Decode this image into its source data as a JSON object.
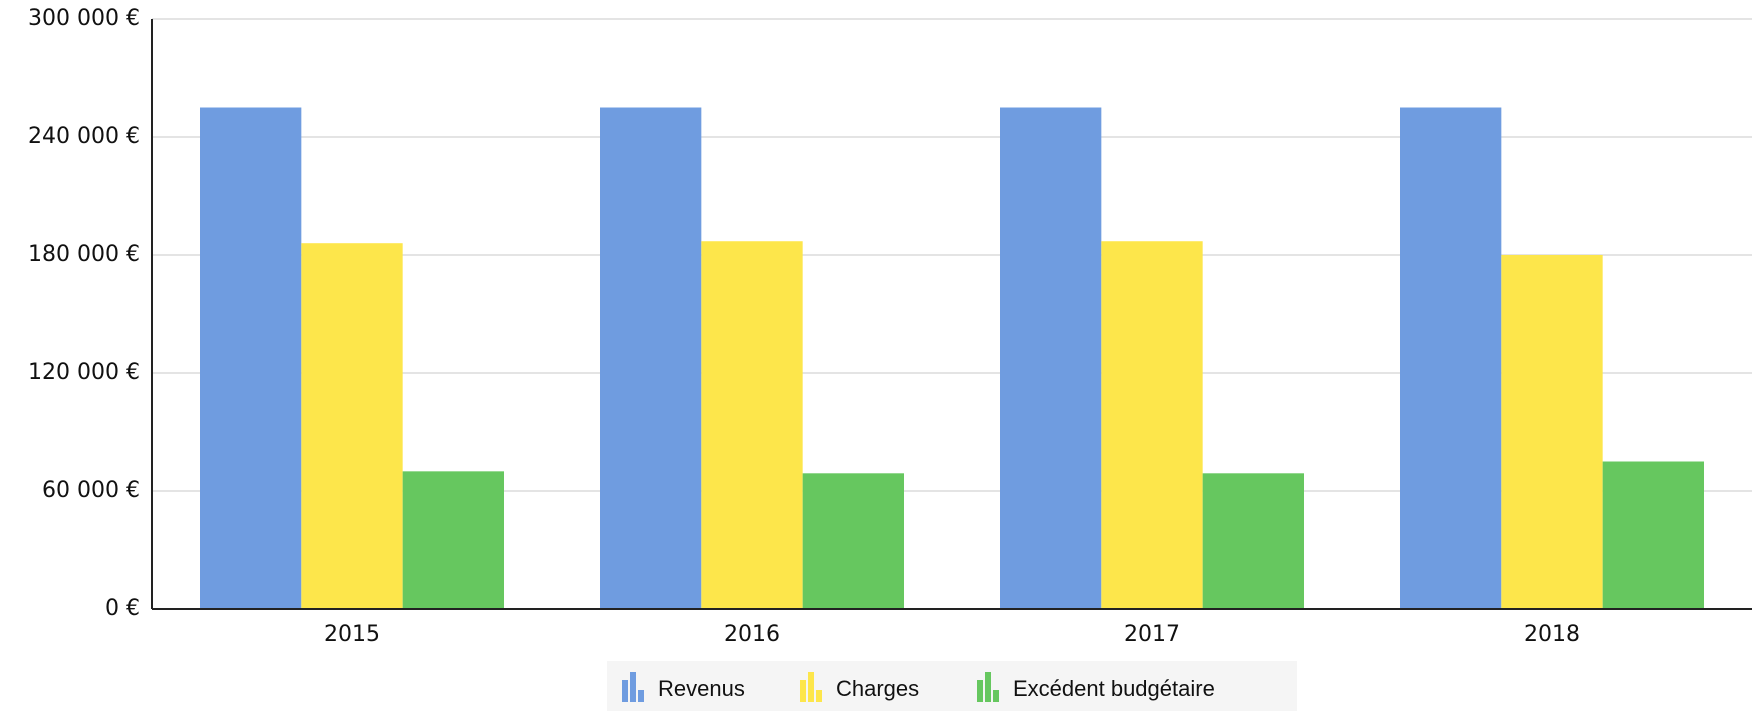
{
  "chart_data": {
    "type": "bar",
    "categories": [
      "2015",
      "2016",
      "2017",
      "2018"
    ],
    "series": [
      {
        "name": "Revenus",
        "color": "#6f9ce0",
        "values": [
          255000,
          255000,
          255000,
          255000
        ]
      },
      {
        "name": "Charges",
        "color": "#fde64b",
        "values": [
          186000,
          187000,
          187000,
          180000
        ]
      },
      {
        "name": "Excédent budgétaire",
        "color": "#66c75f",
        "values": [
          70000,
          69000,
          69000,
          75000
        ]
      }
    ],
    "ylim": [
      0,
      300000
    ],
    "yticks": [
      {
        "value": 0,
        "label": "0 €"
      },
      {
        "value": 60000,
        "label": "60 000 €"
      },
      {
        "value": 120000,
        "label": "120 000 €"
      },
      {
        "value": 180000,
        "label": "180 000 €"
      },
      {
        "value": 240000,
        "label": "240 000 €"
      },
      {
        "value": 300000,
        "label": "300 000 €"
      }
    ],
    "grid": true,
    "legend": "bottom"
  }
}
